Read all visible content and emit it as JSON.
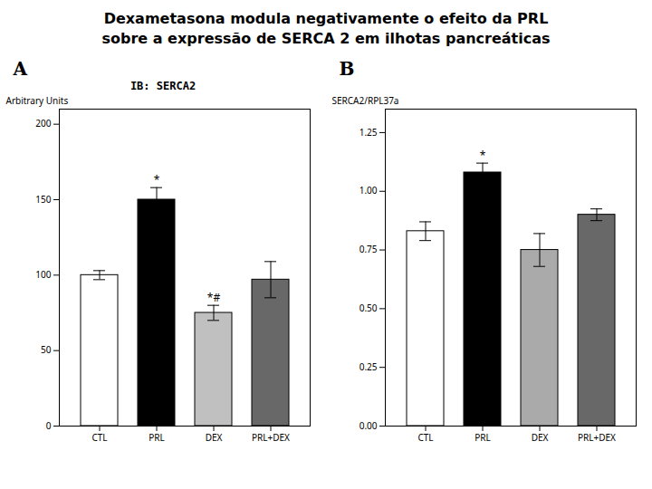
{
  "title": "Dexametasona modula negativamente o efeito da PRL",
  "subtitle": "sobre a expressão de SERCA 2 em ilhotas pancreáticas",
  "chart_data": [
    {
      "type": "bar",
      "title": "A",
      "subtitle": "IB: SERCA2",
      "ylabel": "Arbitrary Units",
      "categories": [
        "CTL",
        "PRL",
        "DEX",
        "PRL+DEX"
      ],
      "values": [
        100,
        150,
        75,
        97
      ],
      "errors": [
        3,
        8,
        5,
        12
      ],
      "colors": [
        "white",
        "black",
        "#c0c0c0",
        "#686868"
      ],
      "ylim": [
        0,
        210
      ],
      "yticks": [
        0,
        50,
        100,
        150,
        200
      ],
      "annotations": [
        {
          "category": "PRL",
          "text": "*"
        },
        {
          "category": "DEX",
          "text": "*#"
        }
      ]
    },
    {
      "type": "bar",
      "title": "B",
      "ylabel": "SERCA2/RPL37a",
      "categories": [
        "CTL",
        "PRL",
        "DEX",
        "PRL+DEX"
      ],
      "values": [
        0.83,
        1.08,
        0.75,
        0.9
      ],
      "errors": [
        0.04,
        0.04,
        0.07,
        0.025
      ],
      "colors": [
        "white",
        "black",
        "#aaaaaa",
        "#686868"
      ],
      "ylim": [
        0.0,
        1.35
      ],
      "yticks": [
        {
          "value": 0,
          "label": "0.00"
        },
        0.25,
        {
          "value": 0.5,
          "label": "0.50"
        },
        0.75,
        {
          "value": 1,
          "label": "1.00"
        },
        1.25
      ],
      "annotations": [
        {
          "category": "PRL",
          "text": "*"
        }
      ]
    }
  ]
}
